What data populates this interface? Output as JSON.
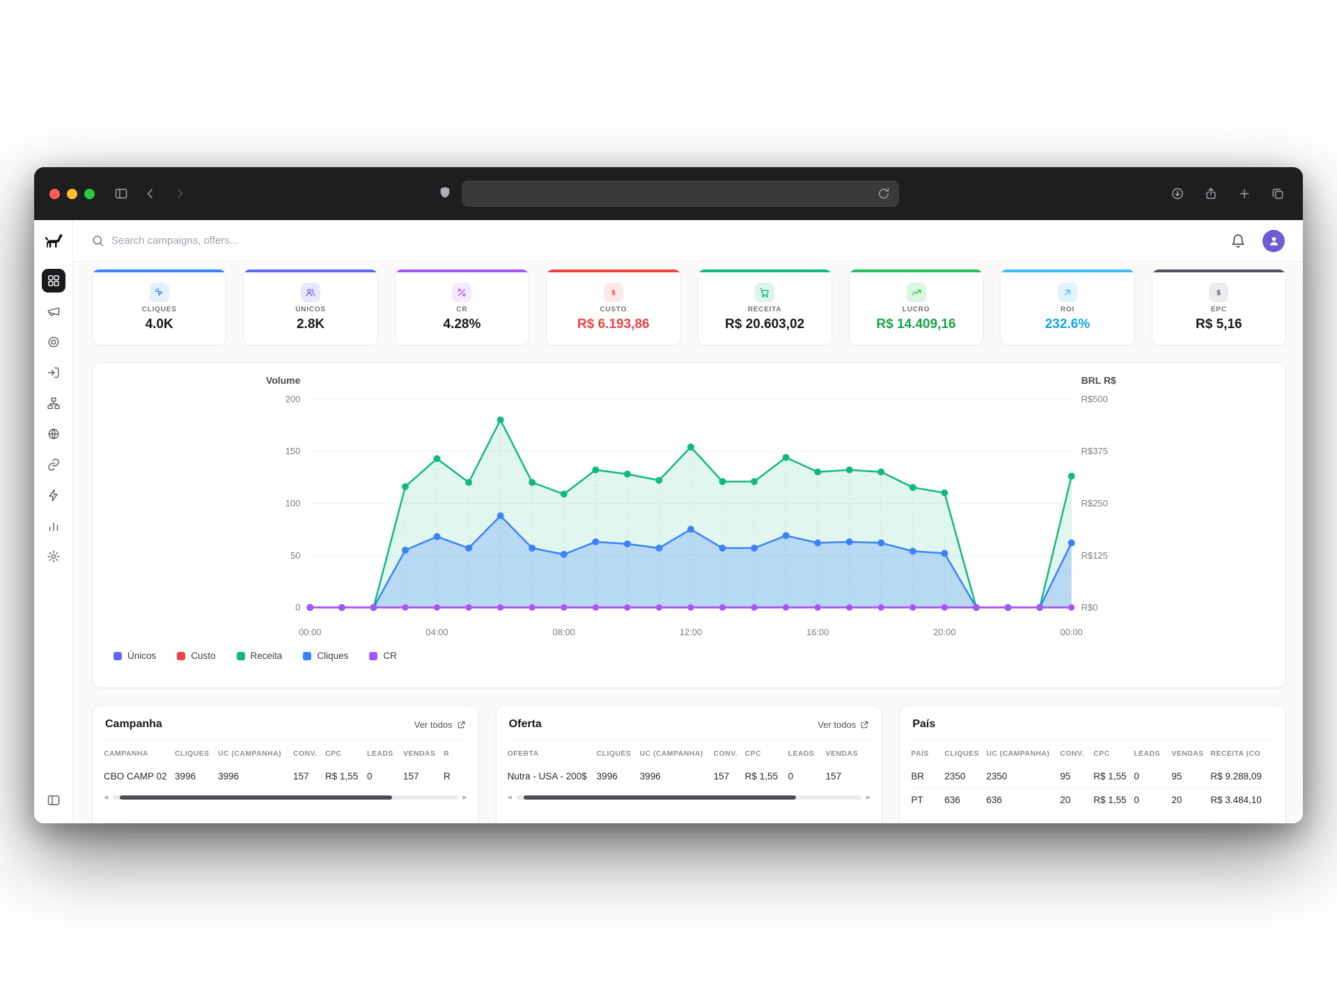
{
  "browser": {
    "url": "",
    "colors": {
      "chrome_bg": "#1e1e20",
      "traffic_red": "#ff5f57",
      "traffic_yellow": "#febc2e",
      "traffic_green": "#28c840"
    }
  },
  "topbar": {
    "search_placeholder": "Search campaigns, offers..."
  },
  "sidebar": {
    "icons": [
      "dashboard-grid",
      "megaphone",
      "target",
      "postback-arrow",
      "flows-sitemap",
      "globe",
      "link",
      "lightning",
      "bar-chart",
      "gear",
      "panel-left"
    ],
    "active": "dashboard-grid"
  },
  "kpis": [
    {
      "label": "CLIQUES",
      "value": "4.0K",
      "accent": "#3b82f6",
      "chip_bg": "#e3eefe",
      "icon": "click"
    },
    {
      "label": "ÚNICOS",
      "value": "2.8K",
      "accent": "#6366f1",
      "chip_bg": "#e7e8fd",
      "icon": "users"
    },
    {
      "label": "CR",
      "value": "4.28%",
      "accent": "#a855f7",
      "chip_bg": "#f4e9fe",
      "icon": "percent"
    },
    {
      "label": "CUSTO",
      "value": "R$ 6.193,86",
      "accent": "#ef4444",
      "chip_bg": "#fde7e7",
      "icon": "dollar",
      "value_color": "#ef4444"
    },
    {
      "label": "RECEITA",
      "value": "R$ 20.603,02",
      "accent": "#10b981",
      "chip_bg": "#dcf5ea",
      "icon": "cart"
    },
    {
      "label": "LUCRO",
      "value": "R$ 14.409,16",
      "accent": "#22c55e",
      "chip_bg": "#dcf5e3",
      "icon": "trend",
      "value_color": "#16a34a"
    },
    {
      "label": "ROI",
      "value": "232.6%",
      "accent": "#38bdf8",
      "chip_bg": "#e1f3fd",
      "icon": "arrow-up-right",
      "value_color": "#0ea5e9"
    },
    {
      "label": "EPC",
      "value": "R$ 5,16",
      "accent": "#52525b",
      "chip_bg": "#ececf0",
      "icon": "dollar"
    }
  ],
  "chart_data": {
    "type": "line",
    "x": [
      "00:00",
      "01:00",
      "02:00",
      "03:00",
      "04:00",
      "05:00",
      "06:00",
      "07:00",
      "08:00",
      "09:00",
      "10:00",
      "11:00",
      "12:00",
      "13:00",
      "14:00",
      "15:00",
      "16:00",
      "17:00",
      "18:00",
      "19:00",
      "20:00",
      "21:00",
      "22:00",
      "23:00",
      "00:00"
    ],
    "x_tick_every": 4,
    "left_axis": {
      "title": "Volume",
      "ticks": [
        0,
        50,
        100,
        150,
        200
      ],
      "max": 200
    },
    "right_axis": {
      "title": "BRL R$",
      "ticks": [
        "R$0",
        "R$125",
        "R$250",
        "R$375",
        "R$500"
      ],
      "max": 500
    },
    "grid": true,
    "legend_position": "bottom-left",
    "series": [
      {
        "name": "Únicos",
        "color": "#6366f1",
        "axis": "left",
        "values": [
          0,
          0,
          0,
          0,
          0,
          0,
          0,
          0,
          0,
          0,
          0,
          0,
          0,
          0,
          0,
          0,
          0,
          0,
          0,
          0,
          0,
          0,
          0,
          0,
          0
        ]
      },
      {
        "name": "Custo",
        "color": "#ef4444",
        "axis": "left",
        "values": [
          0,
          0,
          0,
          0,
          0,
          0,
          0,
          0,
          0,
          0,
          0,
          0,
          0,
          0,
          0,
          0,
          0,
          0,
          0,
          0,
          0,
          0,
          0,
          0,
          0
        ]
      },
      {
        "name": "Receita",
        "color": "#10b981",
        "axis": "right",
        "fill": "rgba(16,185,129,0.13)",
        "droplines": true,
        "values": [
          0,
          0,
          0,
          290,
          357,
          300,
          450,
          300,
          272,
          330,
          320,
          305,
          385,
          302,
          302,
          360,
          325,
          330,
          325,
          288,
          275,
          0,
          0,
          0,
          315
        ]
      },
      {
        "name": "Cliques",
        "color": "#3b82f6",
        "axis": "left",
        "fill": "rgba(59,130,246,0.25)",
        "values": [
          0,
          0,
          0,
          55,
          68,
          57,
          88,
          57,
          51,
          63,
          61,
          57,
          75,
          57,
          57,
          69,
          62,
          63,
          62,
          54,
          52,
          0,
          0,
          0,
          62
        ]
      },
      {
        "name": "CR",
        "color": "#a855f7",
        "axis": "left",
        "values": [
          0,
          0,
          0,
          0,
          0,
          0,
          0,
          0,
          0,
          0,
          0,
          0,
          0,
          0,
          0,
          0,
          0,
          0,
          0,
          0,
          0,
          0,
          0,
          0,
          0
        ]
      }
    ]
  },
  "tables": [
    {
      "title": "Campanha",
      "link": "Ver todos",
      "headers": [
        "CAMPANHA",
        "CLIQUES",
        "UC (CAMPANHA)",
        "CONV.",
        "CPC",
        "LEADS",
        "VENDAS",
        "R"
      ],
      "rows": [
        [
          "CBO CAMP 02",
          "3996",
          "3996",
          "157",
          "R$ 1,55",
          "0",
          "157",
          "R"
        ]
      ],
      "scrollbar": true
    },
    {
      "title": "Oferta",
      "link": "Ver todos",
      "headers": [
        "OFERTA",
        "CLIQUES",
        "UC (CAMPANHA)",
        "CONV.",
        "CPC",
        "LEADS",
        "VENDAS"
      ],
      "rows": [
        [
          "Nutra - USA - 200$",
          "3996",
          "3996",
          "157",
          "R$ 1,55",
          "0",
          "157"
        ]
      ],
      "scrollbar": true
    },
    {
      "title": "País",
      "link": "",
      "headers": [
        "PAÍS",
        "CLIQUES",
        "UC (CAMPANHA)",
        "CONV.",
        "CPC",
        "LEADS",
        "VENDAS",
        "RECEITA (CO"
      ],
      "rows": [
        [
          "BR",
          "2350",
          "2350",
          "95",
          "R$ 1,55",
          "0",
          "95",
          "R$ 9.288,09"
        ],
        [
          "PT",
          "636",
          "636",
          "20",
          "R$ 1,55",
          "0",
          "20",
          "R$ 3.484,10"
        ]
      ],
      "scrollbar": false
    }
  ]
}
